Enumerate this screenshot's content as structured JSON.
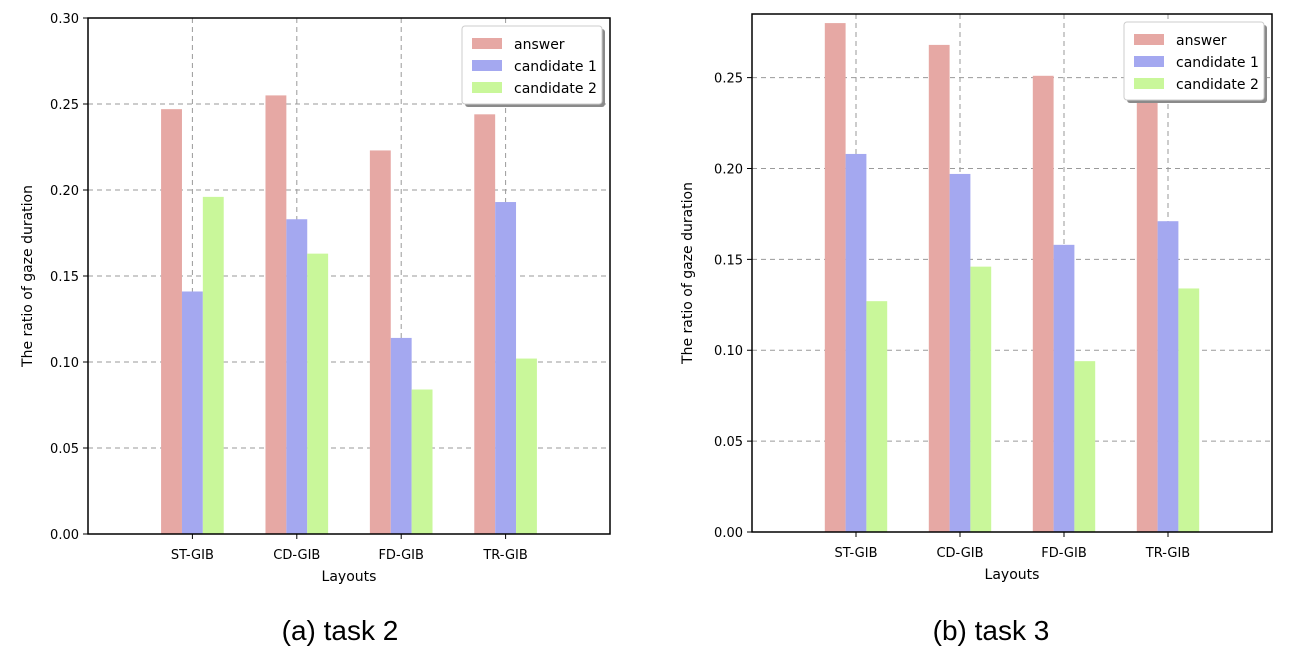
{
  "colors": {
    "answer": "#e6a8a4",
    "candidate1": "#a4a8f0",
    "candidate2": "#c9f79a",
    "grid": "#9a9a9a"
  },
  "chart_data": [
    {
      "type": "bar",
      "caption": "(a) task 2",
      "categories": [
        "ST-GIB",
        "CD-GIB",
        "FD-GIB",
        "TR-GIB"
      ],
      "series": [
        {
          "name": "answer",
          "values": [
            0.247,
            0.255,
            0.223,
            0.244
          ]
        },
        {
          "name": "candidate 1",
          "values": [
            0.141,
            0.183,
            0.114,
            0.193
          ]
        },
        {
          "name": "candidate 2",
          "values": [
            0.196,
            0.163,
            0.084,
            0.102
          ]
        }
      ],
      "xlabel": "Layouts",
      "ylabel": "The ratio of gaze duration",
      "ylim": [
        0,
        0.3
      ],
      "yticks": [
        "0.00",
        "0.05",
        "0.10",
        "0.15",
        "0.20",
        "0.25",
        "0.30"
      ],
      "grid": true,
      "legend": "top-right"
    },
    {
      "type": "bar",
      "caption": "(b) task 3",
      "categories": [
        "ST-GIB",
        "CD-GIB",
        "FD-GIB",
        "TR-GIB"
      ],
      "series": [
        {
          "name": "answer",
          "values": [
            0.28,
            0.268,
            0.251,
            0.24
          ]
        },
        {
          "name": "candidate 1",
          "values": [
            0.208,
            0.197,
            0.158,
            0.171
          ]
        },
        {
          "name": "candidate 2",
          "values": [
            0.127,
            0.146,
            0.094,
            0.134
          ]
        }
      ],
      "xlabel": "Layouts",
      "ylabel": "The ratio of gaze duration",
      "ylim": [
        0,
        0.285
      ],
      "yticks": [
        "0.00",
        "0.05",
        "0.10",
        "0.15",
        "0.20",
        "0.25"
      ],
      "grid": true,
      "legend": "top-right"
    }
  ]
}
